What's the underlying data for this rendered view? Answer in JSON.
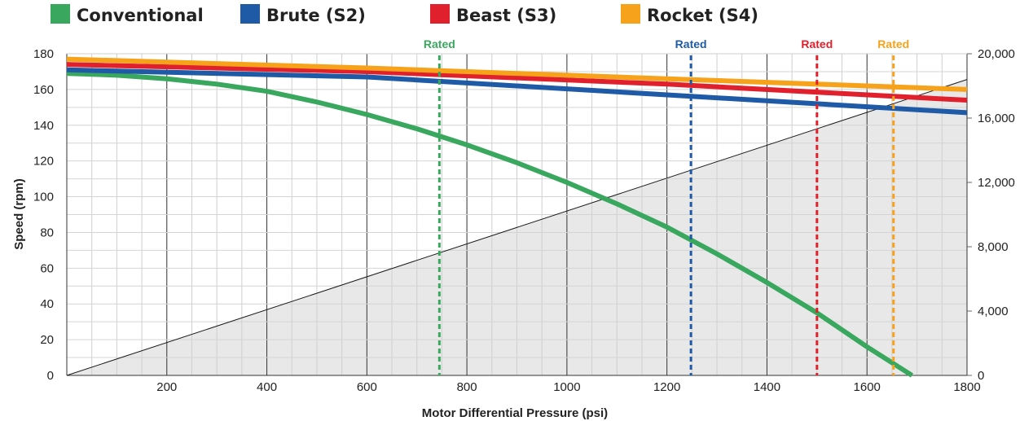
{
  "chart_data": {
    "type": "line",
    "xlabel": "Motor Differential Pressure (psi)",
    "ylabel": "Speed (rpm)",
    "xlim": [
      0,
      1800
    ],
    "ylim": [
      0,
      180
    ],
    "y2lim": [
      0,
      20000
    ],
    "x_ticks": [
      200,
      400,
      600,
      800,
      1000,
      1200,
      1400,
      1600,
      1800
    ],
    "y_ticks": [
      0,
      20,
      40,
      60,
      80,
      100,
      120,
      140,
      160,
      180
    ],
    "y2_ticks": [
      "0",
      "4,000",
      "8,000",
      "12,000",
      "16,000",
      "20,000"
    ],
    "y2_tick_values": [
      0,
      4000,
      8000,
      12000,
      16000,
      20000
    ],
    "x_tick_labels": [
      "200",
      "400",
      "600",
      "800",
      "1000",
      "1200",
      "1400",
      "1600",
      "1800"
    ],
    "y_tick_labels": [
      "0",
      "20",
      "40",
      "60",
      "80",
      "100",
      "120",
      "140",
      "160",
      "180"
    ],
    "grid": true,
    "legend_position": "top",
    "series": [
      {
        "name": "Conventional",
        "color": "#3aa75e",
        "x": [
          0,
          100,
          200,
          300,
          400,
          500,
          600,
          700,
          800,
          900,
          1000,
          1100,
          1200,
          1300,
          1400,
          1500,
          1600,
          1690
        ],
        "y": [
          169,
          168,
          166,
          163,
          159,
          153,
          146,
          138,
          129,
          119,
          108,
          96,
          83,
          68,
          52,
          35,
          16,
          0
        ]
      },
      {
        "name": "Brute (S2)",
        "color": "#1f5aa6",
        "x": [
          0,
          600,
          1200,
          1800
        ],
        "y": [
          171,
          167,
          157,
          147
        ]
      },
      {
        "name": "Beast (S3)",
        "color": "#e0202c",
        "x": [
          0,
          600,
          1200,
          1800
        ],
        "y": [
          174,
          170,
          163,
          154
        ]
      },
      {
        "name": "Rocket (S4)",
        "color": "#f7a21b",
        "x": [
          0,
          600,
          1200,
          1800
        ],
        "y": [
          177,
          172,
          166,
          160
        ]
      }
    ],
    "torque_area": {
      "color": "#e8e8e8",
      "line_color": "#1a1a1a",
      "x": [
        0,
        1800
      ],
      "y2": [
        0,
        18400
      ]
    },
    "rated_markers": [
      {
        "label": "Rated",
        "x": 745,
        "color": "#3aa75e"
      },
      {
        "label": "Rated",
        "x": 1248,
        "color": "#1f5aa6"
      },
      {
        "label": "Rated",
        "x": 1500,
        "color": "#e0202c"
      },
      {
        "label": "Rated",
        "x": 1653,
        "color": "#f7a21b"
      }
    ]
  }
}
